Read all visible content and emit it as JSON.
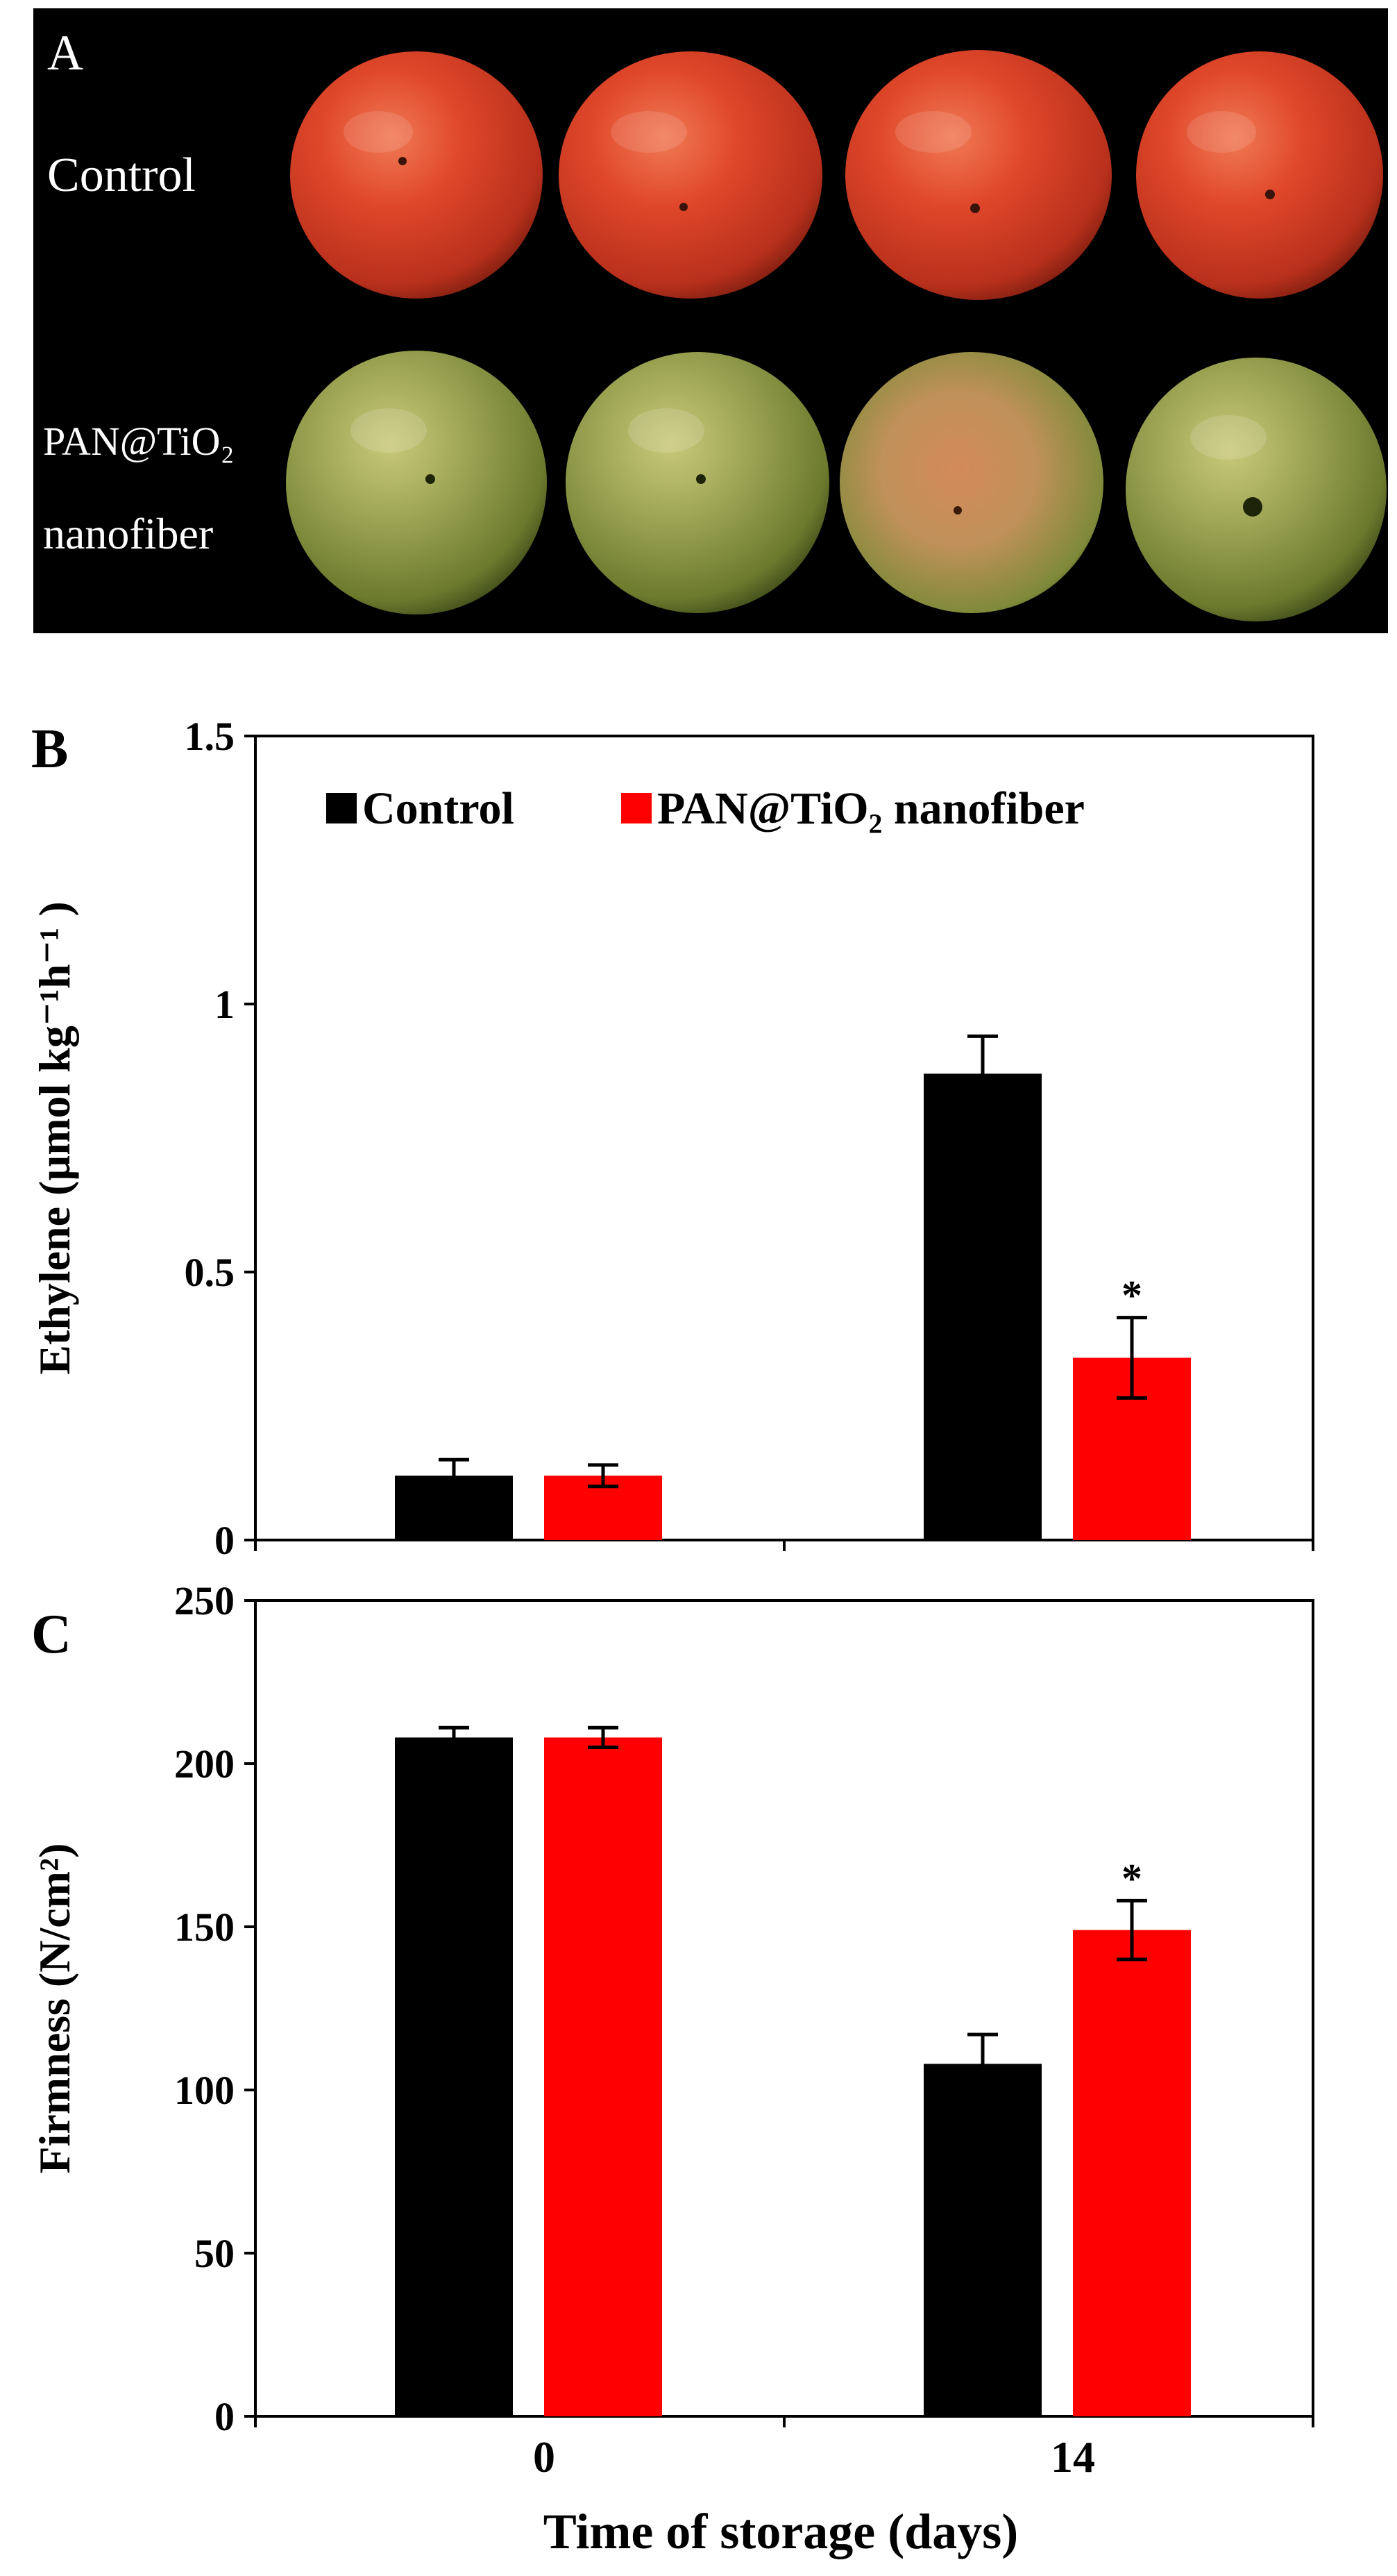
{
  "panel_a": {
    "label": "A",
    "row_labels": [
      "Control",
      "PAN@TiO₂",
      "nanofiber"
    ],
    "rows": [
      {
        "name": "Control",
        "fruit": [
          "tomato-red",
          "tomato-red",
          "tomato-red",
          "tomato-red"
        ]
      },
      {
        "name": "PAN@TiO₂ nanofiber",
        "fruit": [
          "tomato-green",
          "tomato-green",
          "tomato-green-blush",
          "tomato-green"
        ]
      }
    ]
  },
  "colors": {
    "control": "#000000",
    "treatment": "#ff0000",
    "photo_bg": "#000000"
  },
  "chart_data": [
    {
      "panel": "B",
      "type": "bar",
      "categories": [
        "0",
        "14"
      ],
      "series": [
        {
          "name": "Control",
          "values": [
            0.12,
            0.87
          ],
          "errors": [
            0.03,
            0.07
          ]
        },
        {
          "name": "PAN@TiO₂ nanofiber",
          "values": [
            0.12,
            0.34
          ],
          "errors": [
            0.02,
            0.075
          ]
        }
      ],
      "significance": [
        {
          "category": "14",
          "series": "PAN@TiO₂ nanofiber",
          "mark": "*"
        }
      ],
      "ylabel": "Ethylene (µmol kg⁻¹h⁻¹ )",
      "ylim": [
        0,
        1.5
      ],
      "yticks": [
        0,
        0.5,
        1,
        1.5
      ],
      "ytick_labels": [
        "0",
        "0.5",
        "1",
        "1.5"
      ],
      "legend": {
        "position": "top",
        "entries": [
          "Control",
          "PAN@TiO₂ nanofiber"
        ]
      },
      "grid": false
    },
    {
      "panel": "C",
      "type": "bar",
      "categories": [
        "0",
        "14"
      ],
      "series": [
        {
          "name": "Control",
          "values": [
            208,
            108
          ],
          "errors": [
            3,
            9
          ]
        },
        {
          "name": "PAN@TiO₂ nanofiber",
          "values": [
            208,
            149
          ],
          "errors": [
            3,
            9
          ]
        }
      ],
      "significance": [
        {
          "category": "14",
          "series": "PAN@TiO₂ nanofiber",
          "mark": "*"
        }
      ],
      "ylabel": "Firmness (N/cm²)",
      "xlabel": "Time of storage (days)",
      "ylim": [
        0,
        250
      ],
      "yticks": [
        0,
        50,
        100,
        150,
        200,
        250
      ],
      "ytick_labels": [
        "0",
        "50",
        "100",
        "150",
        "200",
        "250"
      ],
      "grid": false
    }
  ]
}
